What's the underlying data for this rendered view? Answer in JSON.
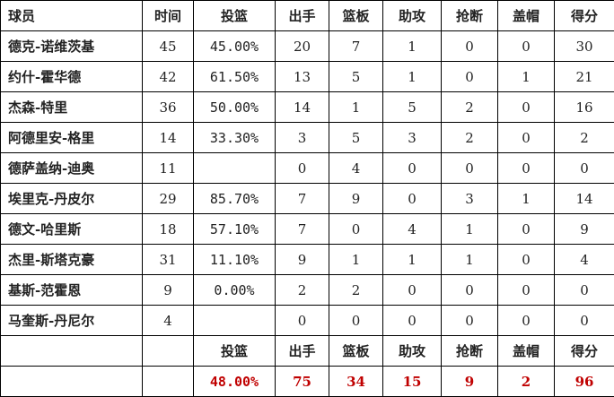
{
  "table": {
    "header": [
      "球员",
      "时间",
      "投篮",
      "出手",
      "篮板",
      "助攻",
      "抢断",
      "盖帽",
      "得分"
    ],
    "rows": [
      [
        "德克-诺维茨基",
        45,
        "45.00%",
        20,
        7,
        1,
        0,
        0,
        30
      ],
      [
        "约什-霍华德",
        42,
        "61.50%",
        13,
        5,
        1,
        0,
        1,
        21
      ],
      [
        "杰森-特里",
        36,
        "50.00%",
        14,
        1,
        5,
        2,
        0,
        16
      ],
      [
        "阿德里安-格里",
        14,
        "33.30%",
        3,
        5,
        3,
        2,
        0,
        2
      ],
      [
        "德萨盖纳-迪奥",
        11,
        null,
        0,
        4,
        0,
        0,
        0,
        0
      ],
      [
        "埃里克-丹皮尔",
        29,
        "85.70%",
        7,
        9,
        0,
        3,
        1,
        14
      ],
      [
        "德文-哈里斯",
        18,
        "57.10%",
        7,
        0,
        4,
        1,
        0,
        9
      ],
      [
        "杰里-斯塔克豪",
        31,
        "11.10%",
        9,
        1,
        1,
        1,
        0,
        4
      ],
      [
        "基斯-范霍恩",
        9,
        "0.00%",
        2,
        2,
        0,
        0,
        0,
        0
      ],
      [
        "马奎斯-丹尼尔",
        4,
        null,
        0,
        0,
        0,
        0,
        0,
        0
      ]
    ],
    "totals": {
      "labels": [
        "投篮",
        "出手",
        "篮板",
        "助攻",
        "抢断",
        "盖帽",
        "得分"
      ],
      "values": [
        "48.00%",
        75,
        34,
        15,
        9,
        2,
        96
      ]
    }
  }
}
